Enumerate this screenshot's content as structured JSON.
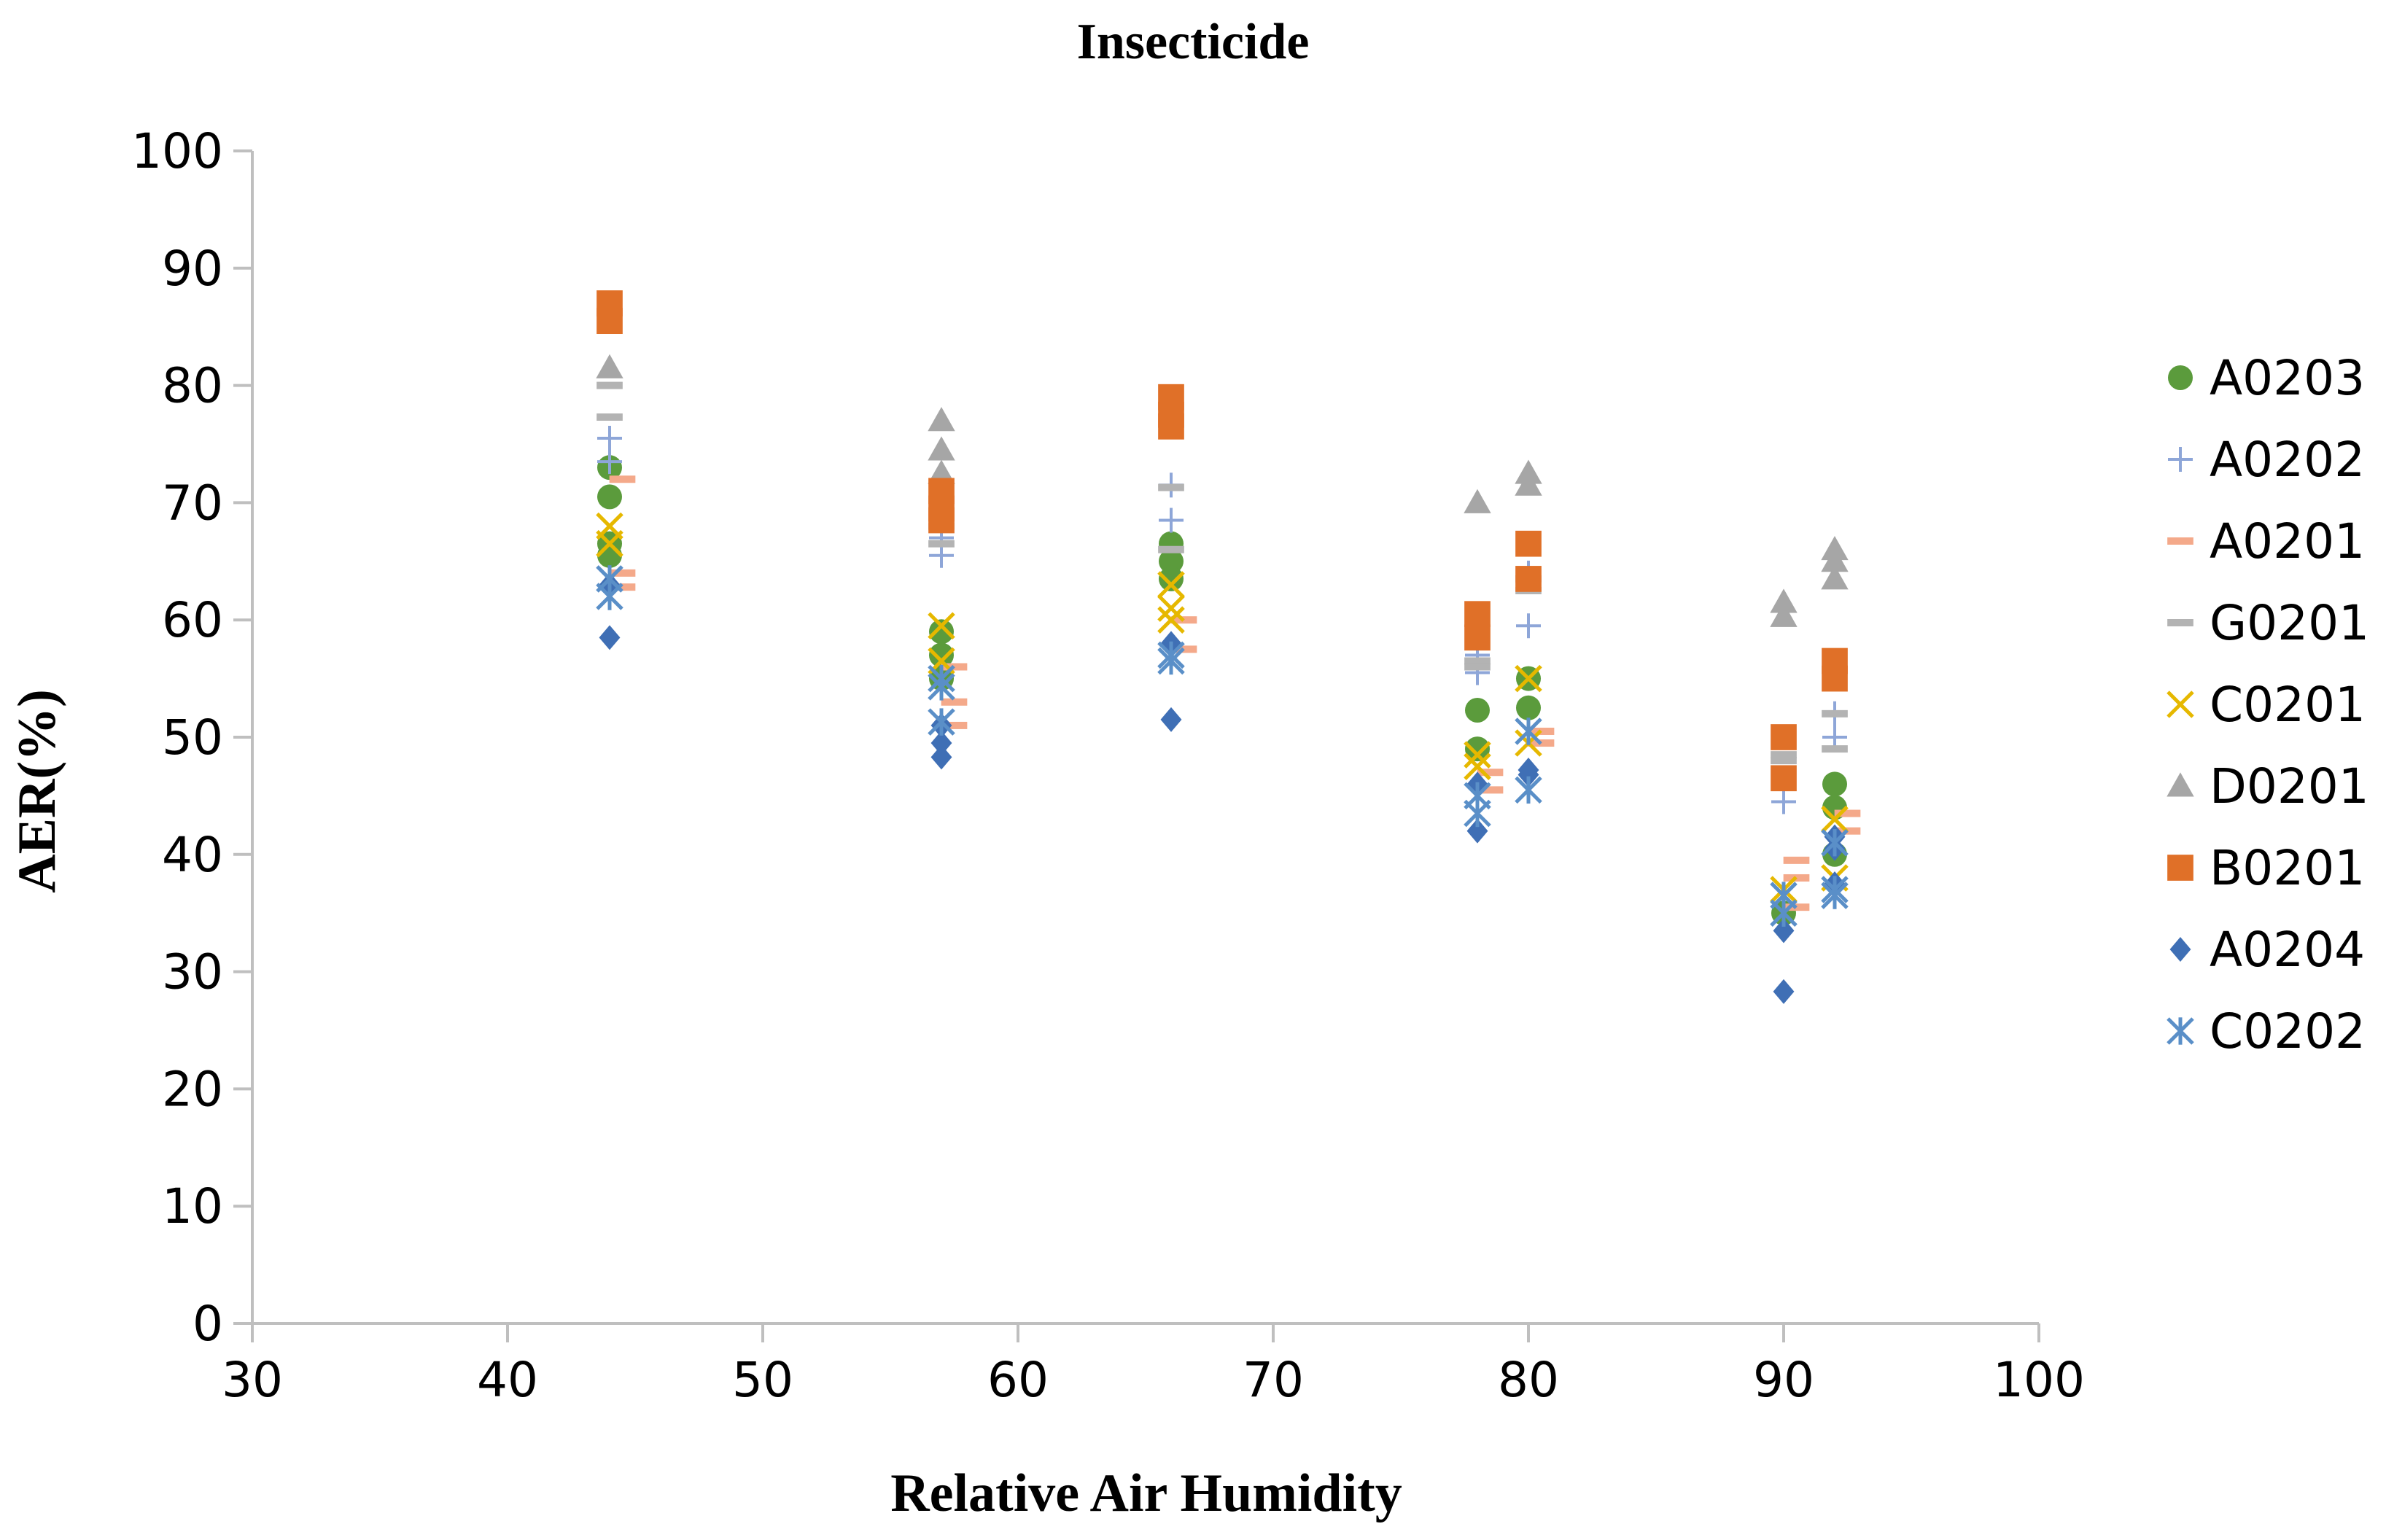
{
  "chart_data": {
    "type": "scatter",
    "title": "Insecticide",
    "xlabel": "Relative Air Humidity",
    "ylabel": "AER(%)",
    "xlim": [
      30,
      100
    ],
    "ylim": [
      0,
      100
    ],
    "xticks": [
      30,
      40,
      50,
      60,
      70,
      80,
      90,
      100
    ],
    "yticks": [
      0,
      10,
      20,
      30,
      40,
      50,
      60,
      70,
      80,
      90,
      100
    ],
    "legend_position": "right",
    "series": [
      {
        "name": "A0203",
        "marker": "circle",
        "color": "#5b9b3c",
        "points": [
          [
            44,
            73
          ],
          [
            44,
            70.5
          ],
          [
            44,
            66.5
          ],
          [
            44,
            65.5
          ],
          [
            57,
            59
          ],
          [
            57,
            57
          ],
          [
            57,
            55
          ],
          [
            66,
            66.5
          ],
          [
            66,
            65
          ],
          [
            66,
            63.5
          ],
          [
            78,
            52.3
          ],
          [
            78,
            49
          ],
          [
            80,
            55
          ],
          [
            80,
            52.5
          ],
          [
            90,
            35
          ],
          [
            92,
            46
          ],
          [
            92,
            44
          ],
          [
            92,
            40
          ]
        ]
      },
      {
        "name": "A0202",
        "marker": "plus",
        "color": "#8ea6d8",
        "points": [
          [
            44,
            75.5
          ],
          [
            44,
            73.5
          ],
          [
            57,
            67
          ],
          [
            57,
            65.5
          ],
          [
            66,
            71.5
          ],
          [
            66,
            68.5
          ],
          [
            78,
            57
          ],
          [
            78,
            55.5
          ],
          [
            80,
            59.5
          ],
          [
            80,
            64
          ],
          [
            90,
            44.5
          ],
          [
            92,
            52
          ],
          [
            92,
            50
          ]
        ]
      },
      {
        "name": "A0201",
        "marker": "dash",
        "color": "#f4a98a",
        "points": [
          [
            44.5,
            72
          ],
          [
            44.5,
            64
          ],
          [
            44.5,
            62.8
          ],
          [
            57.5,
            56
          ],
          [
            57.5,
            53
          ],
          [
            57.5,
            51
          ],
          [
            66.5,
            60
          ],
          [
            66.5,
            57.5
          ],
          [
            78.5,
            47
          ],
          [
            78.5,
            45.5
          ],
          [
            80.5,
            50.5
          ],
          [
            80.5,
            49.5
          ],
          [
            90.5,
            39.5
          ],
          [
            90.5,
            38
          ],
          [
            90.5,
            35.5
          ],
          [
            92.5,
            43.5
          ],
          [
            92.5,
            42
          ]
        ]
      },
      {
        "name": "G0201",
        "marker": "dash",
        "color": "#b3b3b3",
        "points": [
          [
            44,
            80
          ],
          [
            44,
            77.3
          ],
          [
            57,
            68
          ],
          [
            57,
            66.5
          ],
          [
            66,
            71.3
          ],
          [
            66,
            66
          ],
          [
            78,
            56.5
          ],
          [
            78,
            56
          ],
          [
            80,
            63.5
          ],
          [
            80,
            62.5
          ],
          [
            90,
            48.5
          ],
          [
            90,
            48
          ],
          [
            92,
            52
          ],
          [
            92,
            49
          ]
        ]
      },
      {
        "name": "C0201",
        "marker": "x",
        "color": "#e6b800",
        "points": [
          [
            44,
            68
          ],
          [
            44,
            66.5
          ],
          [
            57,
            59.5
          ],
          [
            57,
            56.5
          ],
          [
            66,
            63
          ],
          [
            66,
            61
          ],
          [
            66,
            60
          ],
          [
            78,
            48.5
          ],
          [
            78,
            47.5
          ],
          [
            80,
            55
          ],
          [
            80,
            49.5
          ],
          [
            90,
            37
          ],
          [
            92,
            43
          ],
          [
            92,
            38
          ]
        ]
      },
      {
        "name": "D0201",
        "marker": "triangle",
        "color": "#a6a6a6",
        "points": [
          [
            44,
            81.5
          ],
          [
            57,
            77
          ],
          [
            57,
            74.5
          ],
          [
            57,
            72.5
          ],
          [
            78,
            70
          ],
          [
            80,
            72.5
          ],
          [
            80,
            71.5
          ],
          [
            90,
            61.5
          ],
          [
            90,
            60.3
          ],
          [
            92,
            66
          ],
          [
            92,
            65
          ],
          [
            92,
            63.5
          ]
        ]
      },
      {
        "name": "B0201",
        "marker": "square",
        "color": "#e07028",
        "points": [
          [
            44,
            87
          ],
          [
            44,
            85.5
          ],
          [
            57,
            71
          ],
          [
            57,
            69.5
          ],
          [
            57,
            68.5
          ],
          [
            66,
            79
          ],
          [
            66,
            77.5
          ],
          [
            66,
            76.5
          ],
          [
            78,
            60.5
          ],
          [
            78,
            58.5
          ],
          [
            80,
            66.5
          ],
          [
            80,
            63.5
          ],
          [
            90,
            50
          ],
          [
            90,
            46.5
          ],
          [
            92,
            56.5
          ],
          [
            92,
            55
          ]
        ]
      },
      {
        "name": "A0204",
        "marker": "diamond",
        "color": "#3f6fb5",
        "points": [
          [
            44,
            63
          ],
          [
            44,
            58.5
          ],
          [
            57,
            51
          ],
          [
            57,
            49.5
          ],
          [
            57,
            48.3
          ],
          [
            66,
            58
          ],
          [
            66,
            51.5
          ],
          [
            78,
            46
          ],
          [
            78,
            42
          ],
          [
            80,
            47.2
          ],
          [
            80,
            46.8
          ],
          [
            90,
            33.5
          ],
          [
            90,
            28.3
          ],
          [
            92,
            41.5
          ],
          [
            92,
            40.5
          ],
          [
            92,
            37.5
          ]
        ]
      },
      {
        "name": "C0202",
        "marker": "asterisk",
        "color": "#5a8fc8",
        "points": [
          [
            44,
            63.5
          ],
          [
            44,
            62
          ],
          [
            57,
            55
          ],
          [
            57,
            54.3
          ],
          [
            57,
            51.3
          ],
          [
            66,
            57
          ],
          [
            66,
            56.5
          ],
          [
            78,
            45
          ],
          [
            78,
            43.5
          ],
          [
            80,
            50.5
          ],
          [
            80,
            45.5
          ],
          [
            90,
            36.5
          ],
          [
            90,
            35
          ],
          [
            92,
            41
          ],
          [
            92,
            37
          ],
          [
            92,
            36.5
          ]
        ]
      }
    ]
  }
}
